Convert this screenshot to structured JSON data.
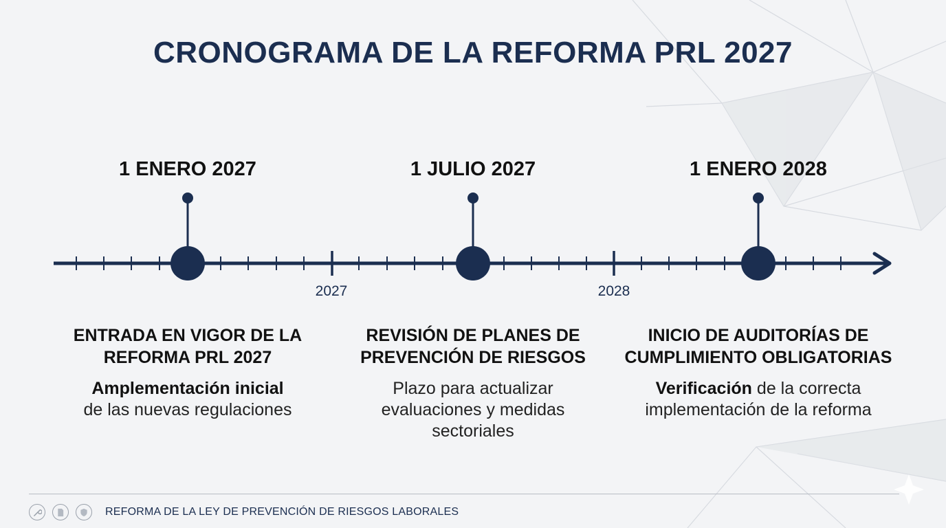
{
  "title": "CRONOGRAMA DE LA REFORMA PRL 2027",
  "timeline": {
    "milestones": [
      {
        "date": "1 ENERO 2027",
        "title_lines": [
          "ENTRADA EN VIGOR DE LA",
          "REFORMA PRL 2027"
        ],
        "desc_bold": "Amplementación inicial",
        "desc_rest": "de las nuevas regulaciones"
      },
      {
        "date": "1 JULIO 2027",
        "title_lines": [
          "REVISIÓN DE PLANES DE",
          "PREVENCIÓN DE RIESGOS"
        ],
        "desc_lines": [
          "Plazo para actualizar",
          "evaluaciones y medidas",
          "sectoriales"
        ]
      },
      {
        "date": "1 ENERO 2028",
        "title_lines": [
          "INICIO DE AUDITORÍAS DE",
          "CUMPLIMIENTO OBLIGATORIAS"
        ],
        "desc_bold": "Verificación",
        "desc_rest_line1": "de la correcta",
        "desc_rest_line2": "implementación de la reforma"
      }
    ],
    "year_labels": [
      "2027",
      "2028"
    ],
    "colors": {
      "line": "#1b2e50",
      "node": "#1b2e50"
    }
  },
  "footer": {
    "text": "REFORMA DE LA LEY DE PREVENCIÓN DE RIESGOS LABORALES",
    "icons": [
      "wrench-icon",
      "document-icon",
      "shield-icon"
    ]
  }
}
